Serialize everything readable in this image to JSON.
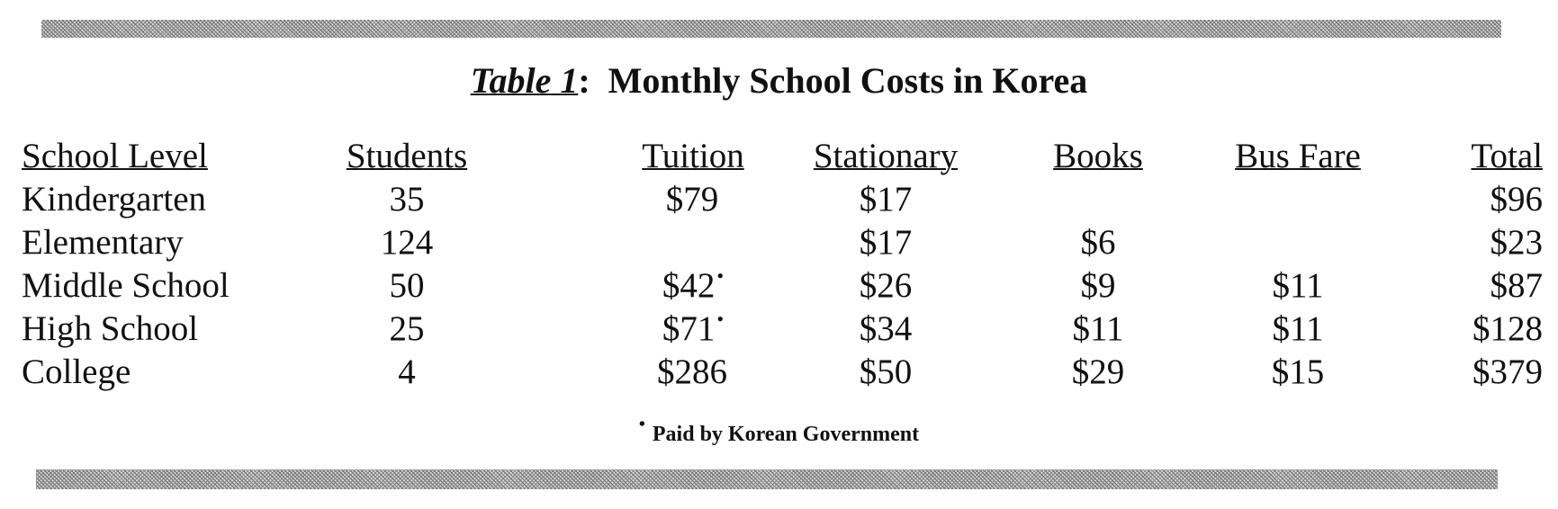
{
  "title": {
    "label": "Table 1",
    "separator": ":",
    "text": "Monthly School Costs in Korea"
  },
  "table": {
    "headers": [
      "School Level",
      "Students",
      "Tuition",
      "Stationary",
      "Books",
      "Bus Fare",
      "Total"
    ],
    "rows": [
      {
        "level": "Kindergarten",
        "students": "35",
        "tuition": "$79",
        "tuition_mark": "",
        "stationary": "$17",
        "books": "",
        "bus": "",
        "total": "$96"
      },
      {
        "level": "Elementary",
        "students": "124",
        "tuition": "",
        "tuition_mark": "",
        "stationary": "$17",
        "books": "$6",
        "bus": "",
        "total": "$23"
      },
      {
        "level": "Middle School",
        "students": "50",
        "tuition": "$42",
        "tuition_mark": "•",
        "stationary": "$26",
        "books": "$9",
        "bus": "$11",
        "total": "$87"
      },
      {
        "level": "High School",
        "students": "25",
        "tuition": "$71",
        "tuition_mark": "•",
        "stationary": "$34",
        "books": "$11",
        "bus": "$11",
        "total": "$128"
      },
      {
        "level": "College",
        "students": "4",
        "tuition": "$286",
        "tuition_mark": "",
        "stationary": "$50",
        "books": "$29",
        "bus": "$15",
        "total": "$379"
      }
    ]
  },
  "footnote": {
    "mark": "•",
    "text": "Paid by Korean Government"
  }
}
